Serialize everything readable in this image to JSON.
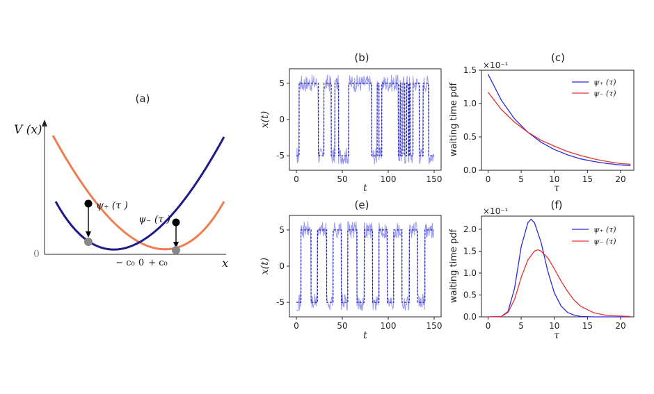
{
  "colors": {
    "dark_blue": "#1f1a8a",
    "orange": "#f07d4f",
    "blue": "#2b2bd6",
    "red": "#e03030",
    "light_blue": "#9a9aee",
    "dot_black": "#000000",
    "dot_gray": "#888888"
  },
  "panel_a": {
    "title": "(a)",
    "ylabel": "V (x)",
    "xlabel": "x",
    "zero_label": "0",
    "xtick_minus": "− c₀",
    "xtick_zero": "0",
    "xtick_plus": "+ c₀",
    "label_psi_plus": "ψ₊ (τ )",
    "label_psi_minus": "ψ₋ (τ )"
  },
  "chart_data": [
    {
      "panel": "(a)",
      "type": "line",
      "title": "(a)",
      "xlabel": "x",
      "ylabel": "V (x)",
      "series": [
        {
          "name": "",
          "curve": "parabola centred at -c0",
          "color": "dark blue"
        },
        {
          "name": "",
          "curve": "parabola centred at +c0",
          "color": "orange"
        }
      ],
      "annotations": [
        "ψ₊ (τ )",
        "ψ₋ (τ )"
      ],
      "xticks": [
        "− c₀",
        "0",
        "+ c₀"
      ]
    },
    {
      "panel": "(b)",
      "type": "line",
      "title": "(b)",
      "xlabel": "t",
      "ylabel": "x(t)",
      "xlim": [
        0,
        150
      ],
      "ylim": [
        -7,
        7
      ],
      "xticks": [
        0,
        50,
        100,
        150
      ],
      "yticks": [
        -5,
        0,
        5
      ],
      "switch_times": [
        0,
        3,
        24,
        30,
        38,
        42,
        46,
        57,
        82,
        88,
        90,
        93,
        111,
        113,
        114,
        116,
        118,
        120,
        122,
        123,
        124,
        127,
        134,
        138,
        144,
        150
      ],
      "start_level": -5,
      "levels": [
        -5,
        5
      ]
    },
    {
      "panel": "(c)",
      "type": "line",
      "title": "(c)",
      "xlabel": "τ",
      "ylabel": "waiting time pdf",
      "y_multiplier": "×10⁻¹",
      "xlim": [
        -1,
        22
      ],
      "ylim": [
        0,
        1.5
      ],
      "xticks": [
        0,
        5,
        10,
        15,
        20
      ],
      "yticks": [
        0.0,
        0.5,
        1.0,
        1.5
      ],
      "legend": "top-right",
      "series": [
        {
          "name": "ψ₊ (τ)",
          "color": "blue",
          "x": [
            0,
            2,
            4,
            6,
            8,
            10,
            12,
            14,
            16,
            18,
            20,
            21.5
          ],
          "y": [
            1.44,
            1.05,
            0.77,
            0.57,
            0.42,
            0.31,
            0.23,
            0.17,
            0.13,
            0.1,
            0.08,
            0.07
          ]
        },
        {
          "name": "ψ₋ (τ)",
          "color": "red",
          "x": [
            0,
            2,
            4,
            6,
            8,
            10,
            12,
            14,
            16,
            18,
            20,
            21.5
          ],
          "y": [
            1.17,
            0.91,
            0.72,
            0.57,
            0.45,
            0.36,
            0.28,
            0.22,
            0.17,
            0.13,
            0.1,
            0.09
          ]
        }
      ]
    },
    {
      "panel": "(e)",
      "type": "line",
      "title": "(e)",
      "xlabel": "t",
      "ylabel": "x(t)",
      "xlim": [
        0,
        150
      ],
      "ylim": [
        -7,
        7
      ],
      "xticks": [
        0,
        50,
        100,
        150
      ],
      "yticks": [
        -5,
        0,
        5
      ],
      "switch_times": [
        0,
        5,
        16,
        23,
        33,
        40,
        49,
        56,
        66,
        74,
        83,
        90,
        99,
        106,
        115,
        123,
        132,
        140,
        150
      ],
      "start_level": -5,
      "levels": [
        -5,
        5
      ]
    },
    {
      "panel": "(f)",
      "type": "line",
      "title": "(f)",
      "xlabel": "τ",
      "ylabel": "waiting time pdf",
      "y_multiplier": "×10⁻¹",
      "xlim": [
        -1,
        22
      ],
      "ylim": [
        0,
        2.3
      ],
      "xticks": [
        0,
        5,
        10,
        15,
        20
      ],
      "yticks": [
        0.0,
        0.5,
        1.0,
        1.5,
        2.0
      ],
      "legend": "top-right",
      "series": [
        {
          "name": "ψ₊ (τ)",
          "color": "blue",
          "x": [
            0,
            2,
            3,
            4,
            5,
            6,
            6.5,
            7,
            8,
            9,
            10,
            11,
            12,
            13,
            14,
            16,
            18,
            21.5
          ],
          "y": [
            0,
            0.01,
            0.12,
            0.65,
            1.6,
            2.15,
            2.23,
            2.15,
            1.7,
            1.05,
            0.55,
            0.25,
            0.1,
            0.04,
            0.01,
            0,
            0,
            0
          ]
        },
        {
          "name": "ψ₋ (τ)",
          "color": "red",
          "x": [
            0,
            2,
            3,
            4,
            5,
            6,
            7,
            7.5,
            8,
            9,
            10,
            11,
            12,
            13,
            14,
            16,
            18,
            21.5
          ],
          "y": [
            0,
            0.01,
            0.1,
            0.4,
            0.9,
            1.3,
            1.5,
            1.53,
            1.5,
            1.35,
            1.1,
            0.82,
            0.58,
            0.38,
            0.24,
            0.09,
            0.03,
            0.01
          ]
        }
      ]
    }
  ]
}
